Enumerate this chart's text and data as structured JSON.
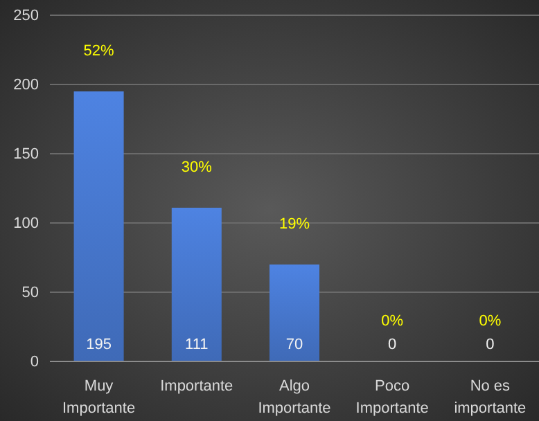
{
  "chart_data": {
    "type": "bar",
    "categories": [
      "Muy Importante",
      "Importante",
      "Algo Importante",
      "Poco Importante",
      "No es importante"
    ],
    "values": [
      195,
      111,
      70,
      0,
      0
    ],
    "color": "#4472c4",
    "data_labels": true,
    "ylim": [
      0,
      250
    ],
    "yticks": [
      0,
      50,
      100,
      150,
      200,
      250
    ],
    "grid": "y",
    "annotations": [
      {
        "text": "52%",
        "x": "Muy Importante",
        "y": 195
      },
      {
        "text": "30%",
        "x": "Importante",
        "y": 111
      },
      {
        "text": "19%",
        "x": "Algo Importante",
        "y": 70
      },
      {
        "text": "0%",
        "x": "Poco Importante",
        "y": 0
      },
      {
        "text": "0%",
        "x": "No es importante",
        "y": 0
      }
    ]
  }
}
